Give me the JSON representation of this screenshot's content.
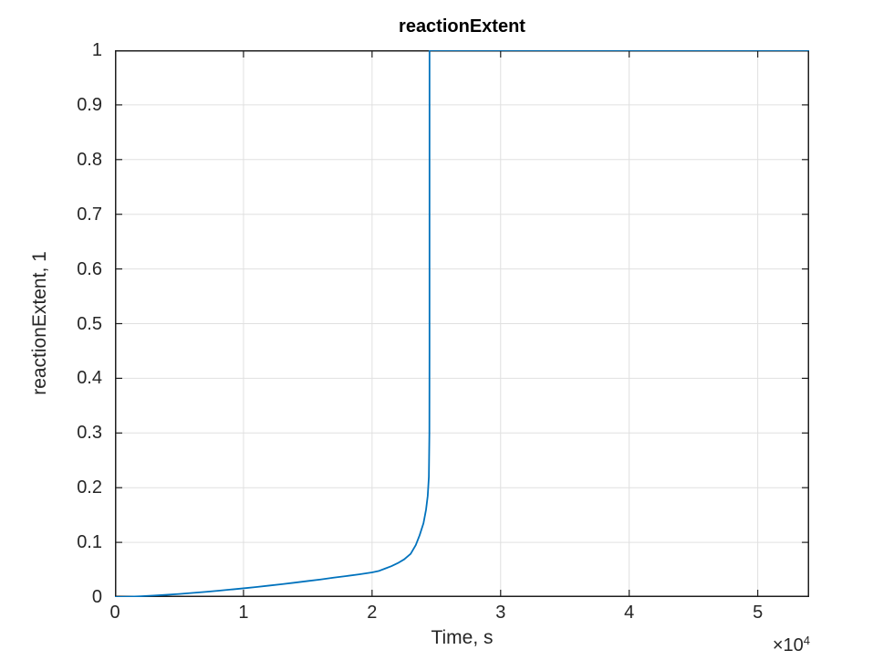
{
  "figure": {
    "title": "reactionExtent",
    "xlabel": "Time, s",
    "ylabel": "reactionExtent, 1",
    "x_exponent_base": "×10",
    "x_exponent_power": "4",
    "background": "#ffffff"
  },
  "chart_data": {
    "type": "line",
    "title": "reactionExtent",
    "xlabel": "Time, s",
    "ylabel": "reactionExtent, 1",
    "xlim": [
      0,
      54000
    ],
    "ylim": [
      0,
      1
    ],
    "grid": true,
    "legend": "none",
    "x_tick_scale_label": "×10^4",
    "x_ticks": [
      {
        "value": 0,
        "label": "0"
      },
      {
        "value": 10000,
        "label": "1"
      },
      {
        "value": 20000,
        "label": "2"
      },
      {
        "value": 30000,
        "label": "3"
      },
      {
        "value": 40000,
        "label": "4"
      },
      {
        "value": 50000,
        "label": "5"
      }
    ],
    "y_ticks": [
      {
        "value": 0,
        "label": "0"
      },
      {
        "value": 0.1,
        "label": "0.1"
      },
      {
        "value": 0.2,
        "label": "0.2"
      },
      {
        "value": 0.3,
        "label": "0.3"
      },
      {
        "value": 0.4,
        "label": "0.4"
      },
      {
        "value": 0.5,
        "label": "0.5"
      },
      {
        "value": 0.6,
        "label": "0.6"
      },
      {
        "value": 0.7,
        "label": "0.7"
      },
      {
        "value": 0.8,
        "label": "0.8"
      },
      {
        "value": 0.9,
        "label": "0.9"
      },
      {
        "value": 1,
        "label": "1"
      }
    ],
    "colors": {
      "line": "#0072BD",
      "grid": "#e0e0e0",
      "axis": "#1f1f1f",
      "tick_label": "#262626",
      "title": "#000000",
      "background": "#ffffff"
    },
    "series": [
      {
        "name": "reactionExtent",
        "color": "#0072BD",
        "points": [
          [
            0,
            0.0
          ],
          [
            1000,
            0.0005
          ],
          [
            2000,
            0.0015
          ],
          [
            3000,
            0.0027
          ],
          [
            4000,
            0.0041
          ],
          [
            5000,
            0.0057
          ],
          [
            6000,
            0.0075
          ],
          [
            7000,
            0.0094
          ],
          [
            8000,
            0.0115
          ],
          [
            9000,
            0.0137
          ],
          [
            10000,
            0.016
          ],
          [
            11000,
            0.0184
          ],
          [
            12000,
            0.021
          ],
          [
            13000,
            0.0236
          ],
          [
            14000,
            0.0264
          ],
          [
            15000,
            0.0293
          ],
          [
            16000,
            0.0322
          ],
          [
            17000,
            0.0355
          ],
          [
            18000,
            0.0384
          ],
          [
            19000,
            0.0415
          ],
          [
            20000,
            0.045
          ],
          [
            20500,
            0.0475
          ],
          [
            21000,
            0.052
          ],
          [
            21500,
            0.0565
          ],
          [
            22000,
            0.062
          ],
          [
            22500,
            0.069
          ],
          [
            23000,
            0.079
          ],
          [
            23400,
            0.095
          ],
          [
            23700,
            0.113
          ],
          [
            24000,
            0.135
          ],
          [
            24200,
            0.16
          ],
          [
            24330,
            0.185
          ],
          [
            24420,
            0.22
          ],
          [
            24460,
            0.3
          ],
          [
            24468,
            0.45
          ],
          [
            24470,
            1.0
          ],
          [
            54000,
            1.0
          ]
        ]
      }
    ]
  }
}
